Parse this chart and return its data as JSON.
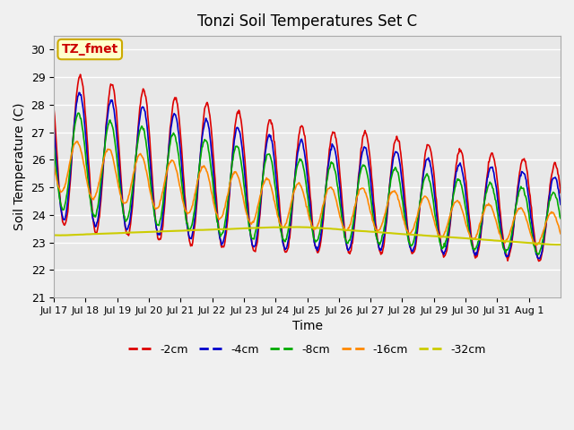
{
  "title": "Tonzi Soil Temperatures Set C",
  "xlabel": "Time",
  "ylabel": "Soil Temperature (C)",
  "ylim": [
    21.0,
    30.5
  ],
  "yticks": [
    21.0,
    22.0,
    23.0,
    24.0,
    25.0,
    26.0,
    27.0,
    28.0,
    29.0,
    30.0
  ],
  "n_days": 16,
  "pts_per_day": 48,
  "xtick_labels": [
    "Jul 17",
    "Jul 18",
    "Jul 19",
    "Jul 20",
    "Jul 21",
    "Jul 22",
    "Jul 23",
    "Jul 24",
    "Jul 25",
    "Jul 26",
    "Jul 27",
    "Jul 28",
    "Jul 29",
    "Jul 30",
    "Jul 31",
    "Aug 1"
  ],
  "fig_bg_color": "#f0f0f0",
  "plot_bg": "#e8e8e8",
  "grid_color": "#ffffff",
  "annotation_text": "TZ_fmet",
  "annotation_bg": "#ffffcc",
  "annotation_border": "#ccaa00",
  "annotation_text_color": "#cc0000",
  "series": [
    {
      "label": "-2cm",
      "color": "#dd0000",
      "lw": 1.2
    },
    {
      "label": "-4cm",
      "color": "#0000cc",
      "lw": 1.2
    },
    {
      "label": "-8cm",
      "color": "#00aa00",
      "lw": 1.2
    },
    {
      "label": "-16cm",
      "color": "#ff8800",
      "lw": 1.2
    },
    {
      "label": "-32cm",
      "color": "#cccc00",
      "lw": 1.5
    }
  ]
}
